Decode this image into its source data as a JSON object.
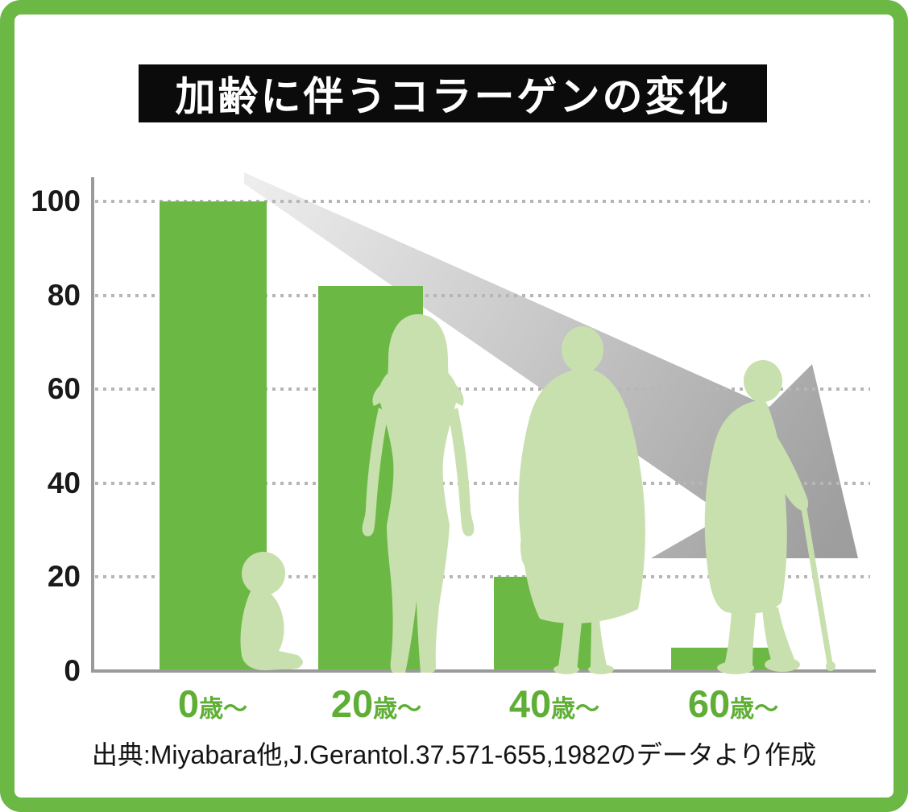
{
  "title": "加齢に伴うコラーゲンの変化",
  "source_note": "出典:Miyabara他,J.Gerantol.37.571-655,1982のデータより作成",
  "colors": {
    "frame": "#6cb845",
    "bar": "#6cb845",
    "silhouette": "#c8e0ae",
    "x_label": "#5fae35",
    "title_bg": "#0b0b0b",
    "title_text": "#ffffff",
    "axis": "#9a9a9a",
    "grid_dot": "#b6b6b6",
    "arrow_start": "#ededed",
    "arrow_end": "#9e9e9e"
  },
  "chart_data": {
    "type": "bar",
    "title": "加齢に伴うコラーゲンの変化",
    "categories": [
      "0歳〜",
      "20歳〜",
      "40歳〜",
      "60歳〜"
    ],
    "values": [
      100,
      82,
      20,
      5
    ],
    "xlabel": "",
    "ylabel": "",
    "ylim": [
      0,
      100
    ],
    "y_ticks": [
      0,
      20,
      40,
      60,
      80,
      100
    ],
    "grid": "horizontal-dotted",
    "legend": "none",
    "annotations": [
      "大きな灰色の下降矢印 (declining gray arrow, upper-left to lower-right)",
      "年代シルエット: 赤ちゃん, 20代女性, 40代女性(バッグ), 60代女性(杖)"
    ],
    "source": "出典:Miyabara他,J.Gerantol.37.571-655,1982のデータより作成"
  },
  "x_axis": {
    "labels": [
      {
        "num": "0",
        "suffix": "歳〜"
      },
      {
        "num": "20",
        "suffix": "歳〜"
      },
      {
        "num": "40",
        "suffix": "歳〜"
      },
      {
        "num": "60",
        "suffix": "歳〜"
      }
    ]
  },
  "y_axis": {
    "ticks": [
      "100",
      "80",
      "60",
      "40",
      "20",
      "0"
    ]
  }
}
